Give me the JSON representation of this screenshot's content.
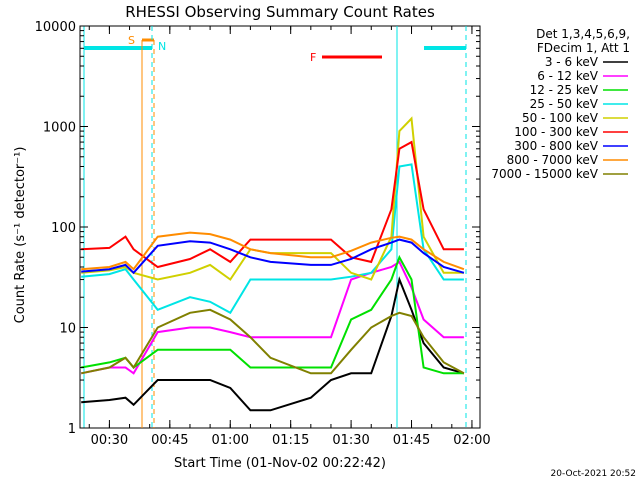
{
  "chart_data": {
    "type": "line",
    "title": "RHESSI Observing Summary Count Rates",
    "xlabel": "Start Time (01-Nov-02 00:22:42)",
    "ylabel": "Count Rate (s⁻¹ detector⁻¹)",
    "yscale": "log",
    "ylim": [
      1,
      10000
    ],
    "xlim": [
      "00:22:42",
      "02:02:00"
    ],
    "x_ticks": [
      "00:30",
      "00:45",
      "01:00",
      "01:15",
      "01:30",
      "01:45",
      "02:00"
    ],
    "y_ticks": [
      "1",
      "10",
      "100",
      "1000",
      "10000"
    ],
    "legend": {
      "position": "right",
      "header": [
        "Det 1,3,4,5,6,9,",
        "FDecim 1, Att 1"
      ]
    },
    "timestamp": "20-Oct-2021 20:52",
    "annotations": [
      {
        "text": "S",
        "color": "#ff8c00"
      },
      {
        "text": "N",
        "color": "#00e5e5"
      },
      {
        "text": "F",
        "color": "#ff0000"
      }
    ],
    "series": [
      {
        "name": "3 - 6 keV",
        "color": "#000000",
        "x": [
          "00:23",
          "00:30",
          "00:34",
          "00:36",
          "00:42",
          "00:50",
          "00:55",
          "01:00",
          "01:05",
          "01:10",
          "01:20",
          "01:25",
          "01:30",
          "01:35",
          "01:40",
          "01:42",
          "01:45",
          "01:48",
          "01:53",
          "01:58"
        ],
        "y": [
          1.8,
          1.9,
          2,
          1.7,
          3,
          3,
          3,
          2.5,
          1.5,
          1.5,
          2,
          3,
          3.5,
          3.5,
          13,
          30,
          15,
          7,
          4,
          3.5
        ]
      },
      {
        "name": "6 - 12 keV",
        "color": "#ff00ff",
        "x": [
          "00:23",
          "00:30",
          "00:34",
          "00:36",
          "00:42",
          "00:50",
          "00:55",
          "01:00",
          "01:05",
          "01:10",
          "01:20",
          "01:25",
          "01:30",
          "01:35",
          "01:40",
          "01:42",
          "01:45",
          "01:48",
          "01:53",
          "01:58"
        ],
        "y": [
          3.5,
          4,
          4,
          3.5,
          9,
          10,
          10,
          9,
          8,
          8,
          8,
          8,
          30,
          35,
          40,
          45,
          25,
          12,
          8,
          8
        ]
      },
      {
        "name": "12 - 25 keV",
        "color": "#00e000",
        "x": [
          "00:23",
          "00:30",
          "00:34",
          "00:36",
          "00:42",
          "00:50",
          "00:55",
          "01:00",
          "01:05",
          "01:10",
          "01:20",
          "01:25",
          "01:30",
          "01:35",
          "01:40",
          "01:42",
          "01:45",
          "01:48",
          "01:53",
          "01:58"
        ],
        "y": [
          4,
          4.5,
          5,
          4,
          6,
          6,
          6,
          6,
          4,
          4,
          4,
          4,
          12,
          15,
          30,
          50,
          30,
          4,
          3.5,
          3.5
        ]
      },
      {
        "name": "25 - 50 keV",
        "color": "#00e5e5",
        "x": [
          "00:23",
          "00:30",
          "00:34",
          "00:36",
          "00:42",
          "00:50",
          "00:55",
          "01:00",
          "01:05",
          "01:10",
          "01:20",
          "01:25",
          "01:30",
          "01:35",
          "01:40",
          "01:42",
          "01:45",
          "01:48",
          "01:53",
          "01:58"
        ],
        "y": [
          32,
          34,
          38,
          30,
          15,
          20,
          18,
          14,
          30,
          30,
          30,
          30,
          32,
          35,
          60,
          400,
          420,
          60,
          30,
          30
        ]
      },
      {
        "name": "50 - 100 keV",
        "color": "#d0d000",
        "x": [
          "00:23",
          "00:30",
          "00:34",
          "00:36",
          "00:42",
          "00:50",
          "00:55",
          "01:00",
          "01:05",
          "01:10",
          "01:20",
          "01:25",
          "01:30",
          "01:35",
          "01:40",
          "01:42",
          "01:45",
          "01:48",
          "01:53",
          "01:58"
        ],
        "y": [
          35,
          37,
          40,
          35,
          30,
          35,
          42,
          30,
          60,
          55,
          55,
          55,
          35,
          30,
          80,
          900,
          1200,
          80,
          35,
          35
        ]
      },
      {
        "name": "100 - 300 keV",
        "color": "#ff0000",
        "x": [
          "00:23",
          "00:30",
          "00:34",
          "00:36",
          "00:42",
          "00:50",
          "00:55",
          "01:00",
          "01:05",
          "01:10",
          "01:20",
          "01:25",
          "01:30",
          "01:35",
          "01:40",
          "01:42",
          "01:45",
          "01:48",
          "01:53",
          "01:58"
        ],
        "y": [
          60,
          62,
          80,
          60,
          40,
          48,
          60,
          45,
          75,
          75,
          75,
          75,
          50,
          45,
          150,
          600,
          700,
          150,
          60,
          60
        ]
      },
      {
        "name": "300 - 800 keV",
        "color": "#0000ff",
        "x": [
          "00:23",
          "00:30",
          "00:34",
          "00:36",
          "00:42",
          "00:50",
          "00:55",
          "01:00",
          "01:05",
          "01:10",
          "01:20",
          "01:25",
          "01:30",
          "01:35",
          "01:40",
          "01:42",
          "01:45",
          "01:48",
          "01:53",
          "01:58"
        ],
        "y": [
          36,
          38,
          42,
          35,
          65,
          72,
          70,
          60,
          50,
          45,
          42,
          42,
          48,
          60,
          70,
          75,
          70,
          55,
          40,
          35
        ]
      },
      {
        "name": "800 - 7000 keV",
        "color": "#ff8c00",
        "x": [
          "00:23",
          "00:30",
          "00:34",
          "00:36",
          "00:42",
          "00:50",
          "00:55",
          "01:00",
          "01:05",
          "01:10",
          "01:20",
          "01:25",
          "01:30",
          "01:35",
          "01:40",
          "01:42",
          "01:45",
          "01:48",
          "01:53",
          "01:58"
        ],
        "y": [
          38,
          40,
          45,
          38,
          80,
          88,
          85,
          75,
          60,
          55,
          50,
          50,
          58,
          70,
          78,
          80,
          75,
          60,
          45,
          38
        ]
      },
      {
        "name": "7000 - 15000 keV",
        "color": "#808000",
        "x": [
          "00:23",
          "00:30",
          "00:34",
          "00:36",
          "00:42",
          "00:50",
          "00:55",
          "01:00",
          "01:05",
          "01:10",
          "01:20",
          "01:25",
          "01:30",
          "01:35",
          "01:40",
          "01:42",
          "01:45",
          "01:48",
          "01:53",
          "01:58"
        ],
        "y": [
          3.5,
          4,
          5,
          4,
          10,
          14,
          15,
          12,
          8,
          5,
          3.5,
          3.5,
          6,
          10,
          13,
          14,
          13,
          8,
          4.5,
          3.5
        ]
      }
    ]
  }
}
